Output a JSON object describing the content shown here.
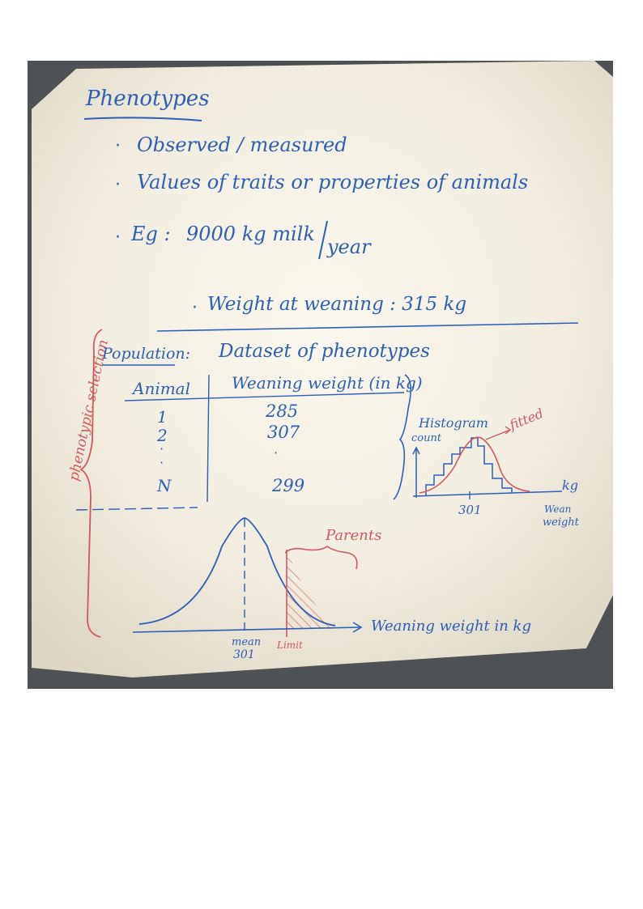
{
  "title": "Phenotypes",
  "bullets": [
    "Observed / measured",
    "Values of traits or properties of animals"
  ],
  "example_label": "Eg :",
  "example_milk_value": "9000 kg milk",
  "example_milk_unit": "year",
  "example_weaning": "Weight at weaning : 315 kg",
  "population_label": "Population:",
  "dataset_title": "Dataset of phenotypes",
  "table": {
    "columns": [
      "Animal",
      "Weaning weight (in kg)"
    ],
    "rows": [
      {
        "animal": "1",
        "weight": "285"
      },
      {
        "animal": "2",
        "weight": "307"
      },
      {
        "animal": "N",
        "weight": "299"
      }
    ]
  },
  "histogram": {
    "title": "Histogram",
    "y_label": "count",
    "fitted_label": "fitted",
    "x_unit": "kg",
    "x_tick": "301",
    "x_label_line1": "Wean",
    "x_label_line2": "weight"
  },
  "side_label": "phenotypic selection",
  "bottom_plot": {
    "parents_label": "Parents",
    "mean_label": "mean",
    "mean_value": "301",
    "limit_label": "Limit",
    "axis_label": "Weaning weight in kg"
  },
  "colors": {
    "ink_blue": "#2f5fb3",
    "ink_red": "#d2585f",
    "board": "#f1ecdf",
    "background_wall": "#4e5254"
  }
}
